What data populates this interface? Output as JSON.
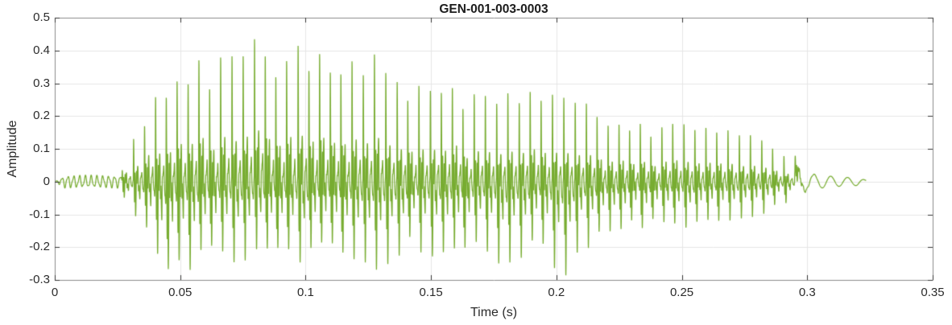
{
  "chart_data": {
    "type": "line",
    "title": "GEN-001-003-0003",
    "xlabel": "Time (s)",
    "ylabel": "Amplitude",
    "xlim": [
      0,
      0.35
    ],
    "ylim": [
      -0.3,
      0.5
    ],
    "xticks": [
      0,
      0.05,
      0.1,
      0.15,
      0.2,
      0.25,
      0.3,
      0.35
    ],
    "xtick_labels": [
      "0",
      "0.05",
      "0.1",
      "0.15",
      "0.2",
      "0.25",
      "0.3",
      "0.35"
    ],
    "yticks": [
      -0.3,
      -0.2,
      -0.1,
      0,
      0.1,
      0.2,
      0.3,
      0.4,
      0.5
    ],
    "ytick_labels": [
      "-0.3",
      "-0.2",
      "-0.1",
      "0",
      "0.1",
      "0.2",
      "0.3",
      "0.4",
      "0.5"
    ],
    "grid": true,
    "legend": null,
    "line_color": "#77AC30",
    "background": "#ffffff",
    "axis_color": "#8c8c8c",
    "tick_color": "#333333",
    "grid_color": "#e6e6e6",
    "title_color": "#1c1c1c",
    "label_color": "#2b2b2b",
    "signal": {
      "description": "speech-like waveform",
      "duration_s": 0.3235,
      "voiced_start_s": 0.0268,
      "voiced_end_s": 0.296,
      "f0_hz": 228,
      "pre_ripple": {
        "freq_hz": 430,
        "amp": 0.016
      },
      "tail_ripple": {
        "freq_hz": 150,
        "start_s": 0.295
      },
      "components": [
        {
          "freq": 1850,
          "amp": 1.0,
          "decay": 820,
          "phase": 0
        },
        {
          "freq": 640,
          "amp": 0.55,
          "decay": 300,
          "phase": 1.3
        },
        {
          "freq": 3300,
          "amp": 0.18,
          "decay": 600,
          "phase": 0.4
        }
      ],
      "envelope_pos": [
        [
          0.0,
          0.013
        ],
        [
          0.004,
          0.016
        ],
        [
          0.024,
          0.016
        ],
        [
          0.0265,
          0.02
        ],
        [
          0.028,
          0.09
        ],
        [
          0.03,
          0.11
        ],
        [
          0.032,
          0.12
        ],
        [
          0.034,
          0.13
        ],
        [
          0.036,
          0.17
        ],
        [
          0.038,
          0.24
        ],
        [
          0.04,
          0.24
        ],
        [
          0.042,
          0.22
        ],
        [
          0.044,
          0.25
        ],
        [
          0.046,
          0.24
        ],
        [
          0.048,
          0.31
        ],
        [
          0.05,
          0.33
        ],
        [
          0.053,
          0.3
        ],
        [
          0.056,
          0.34
        ],
        [
          0.06,
          0.35
        ],
        [
          0.063,
          0.29
        ],
        [
          0.066,
          0.35
        ],
        [
          0.07,
          0.36
        ],
        [
          0.073,
          0.32
        ],
        [
          0.076,
          0.33
        ],
        [
          0.08,
          0.38
        ],
        [
          0.083,
          0.41
        ],
        [
          0.086,
          0.38
        ],
        [
          0.09,
          0.36
        ],
        [
          0.094,
          0.39
        ],
        [
          0.098,
          0.37
        ],
        [
          0.102,
          0.34
        ],
        [
          0.106,
          0.37
        ],
        [
          0.11,
          0.33
        ],
        [
          0.114,
          0.33
        ],
        [
          0.118,
          0.33
        ],
        [
          0.122,
          0.32
        ],
        [
          0.125,
          0.34
        ],
        [
          0.129,
          0.34
        ],
        [
          0.132,
          0.3
        ],
        [
          0.136,
          0.28
        ],
        [
          0.14,
          0.25
        ],
        [
          0.144,
          0.29
        ],
        [
          0.148,
          0.25
        ],
        [
          0.152,
          0.26
        ],
        [
          0.156,
          0.25
        ],
        [
          0.16,
          0.31
        ],
        [
          0.164,
          0.24
        ],
        [
          0.168,
          0.25
        ],
        [
          0.172,
          0.24
        ],
        [
          0.176,
          0.23
        ],
        [
          0.18,
          0.24
        ],
        [
          0.184,
          0.23
        ],
        [
          0.188,
          0.26
        ],
        [
          0.192,
          0.27
        ],
        [
          0.196,
          0.25
        ],
        [
          0.2,
          0.23
        ],
        [
          0.204,
          0.23
        ],
        [
          0.208,
          0.22
        ],
        [
          0.212,
          0.21
        ],
        [
          0.216,
          0.2
        ],
        [
          0.22,
          0.18
        ],
        [
          0.224,
          0.17
        ],
        [
          0.228,
          0.18
        ],
        [
          0.232,
          0.17
        ],
        [
          0.236,
          0.16
        ],
        [
          0.24,
          0.15
        ],
        [
          0.244,
          0.16
        ],
        [
          0.248,
          0.17
        ],
        [
          0.252,
          0.16
        ],
        [
          0.256,
          0.15
        ],
        [
          0.26,
          0.15
        ],
        [
          0.264,
          0.14
        ],
        [
          0.268,
          0.15
        ],
        [
          0.272,
          0.14
        ],
        [
          0.276,
          0.13
        ],
        [
          0.28,
          0.12
        ],
        [
          0.284,
          0.11
        ],
        [
          0.288,
          0.09
        ],
        [
          0.291,
          0.07
        ],
        [
          0.294,
          0.05
        ],
        [
          0.297,
          0.035
        ],
        [
          0.3,
          0.025
        ],
        [
          0.305,
          0.02
        ],
        [
          0.31,
          0.016
        ],
        [
          0.315,
          0.013
        ],
        [
          0.32,
          0.012
        ],
        [
          0.3235,
          0.004
        ]
      ],
      "envelope_neg": [
        [
          0.0,
          0.013
        ],
        [
          0.004,
          0.016
        ],
        [
          0.024,
          0.016
        ],
        [
          0.0265,
          0.03
        ],
        [
          0.028,
          0.06
        ],
        [
          0.03,
          0.08
        ],
        [
          0.033,
          0.1
        ],
        [
          0.036,
          0.13
        ],
        [
          0.039,
          0.17
        ],
        [
          0.042,
          0.24
        ],
        [
          0.044,
          0.28
        ],
        [
          0.047,
          0.26
        ],
        [
          0.05,
          0.25
        ],
        [
          0.054,
          0.23
        ],
        [
          0.058,
          0.22
        ],
        [
          0.062,
          0.21
        ],
        [
          0.066,
          0.22
        ],
        [
          0.07,
          0.22
        ],
        [
          0.075,
          0.21
        ],
        [
          0.08,
          0.2
        ],
        [
          0.085,
          0.21
        ],
        [
          0.09,
          0.2
        ],
        [
          0.095,
          0.21
        ],
        [
          0.1,
          0.22
        ],
        [
          0.105,
          0.2
        ],
        [
          0.11,
          0.2
        ],
        [
          0.115,
          0.21
        ],
        [
          0.12,
          0.21
        ],
        [
          0.125,
          0.22
        ],
        [
          0.13,
          0.22
        ],
        [
          0.135,
          0.19
        ],
        [
          0.14,
          0.18
        ],
        [
          0.145,
          0.19
        ],
        [
          0.15,
          0.19
        ],
        [
          0.155,
          0.19
        ],
        [
          0.16,
          0.2
        ],
        [
          0.165,
          0.19
        ],
        [
          0.17,
          0.18
        ],
        [
          0.175,
          0.19
        ],
        [
          0.18,
          0.22
        ],
        [
          0.185,
          0.19
        ],
        [
          0.19,
          0.18
        ],
        [
          0.195,
          0.17
        ],
        [
          0.2,
          0.24
        ],
        [
          0.205,
          0.24
        ],
        [
          0.21,
          0.18
        ],
        [
          0.215,
          0.16
        ],
        [
          0.22,
          0.15
        ],
        [
          0.225,
          0.15
        ],
        [
          0.23,
          0.14
        ],
        [
          0.235,
          0.13
        ],
        [
          0.24,
          0.12
        ],
        [
          0.245,
          0.12
        ],
        [
          0.25,
          0.12
        ],
        [
          0.255,
          0.12
        ],
        [
          0.26,
          0.12
        ],
        [
          0.265,
          0.11
        ],
        [
          0.27,
          0.11
        ],
        [
          0.275,
          0.1
        ],
        [
          0.28,
          0.1
        ],
        [
          0.285,
          0.08
        ],
        [
          0.29,
          0.06
        ],
        [
          0.294,
          0.045
        ],
        [
          0.297,
          0.03
        ],
        [
          0.3,
          0.02
        ],
        [
          0.305,
          0.016
        ],
        [
          0.31,
          0.013
        ],
        [
          0.315,
          0.011
        ],
        [
          0.32,
          0.01
        ],
        [
          0.3235,
          0.004
        ]
      ]
    }
  }
}
